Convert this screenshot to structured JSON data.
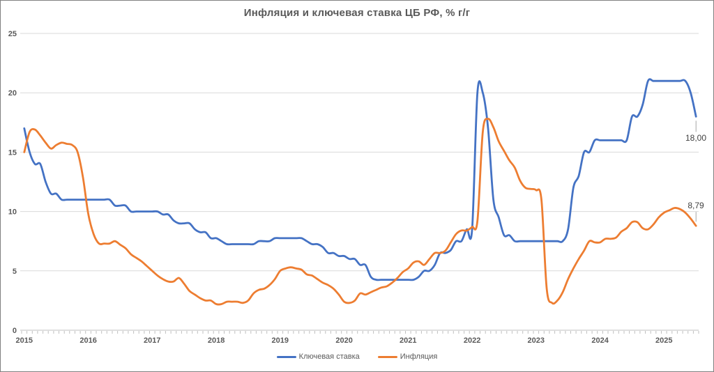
{
  "window": {
    "background": "#FFFFFF",
    "border_color": "#808080"
  },
  "chart_data": {
    "type": "line",
    "title": "Инфляция и ключевая ставка ЦБ РФ, % г/г",
    "x_start": "2015-01",
    "x_end": "2025-07",
    "frequency": "monthly",
    "x_tick_labels": [
      "2015",
      "2016",
      "2017",
      "2018",
      "2019",
      "2020",
      "2021",
      "2022",
      "2023",
      "2024",
      "2025"
    ],
    "ylim": [
      0,
      25
    ],
    "yticks": [
      0,
      5,
      10,
      15,
      20,
      25
    ],
    "grid": "horizontal-only",
    "legend_position": "bottom-center",
    "colors": {
      "grid": "#D9D9D9",
      "axis": "#BFBFBF",
      "text": "#595959",
      "end_label_text": "#404040",
      "leader_line": "#A6A6A6"
    },
    "series": [
      {
        "name": "Ключевая ставка",
        "color": "#4472C4",
        "end_label": "18,00",
        "end_label_position": "below",
        "values": [
          17,
          15,
          14,
          14,
          12.5,
          11.5,
          11.5,
          11,
          11,
          11,
          11,
          11,
          11,
          11,
          11,
          11,
          11,
          10.5,
          10.5,
          10.5,
          10,
          10,
          10,
          10,
          10,
          10,
          9.75,
          9.75,
          9.25,
          9,
          9,
          9,
          8.5,
          8.25,
          8.25,
          7.75,
          7.75,
          7.5,
          7.25,
          7.25,
          7.25,
          7.25,
          7.25,
          7.25,
          7.5,
          7.5,
          7.5,
          7.75,
          7.75,
          7.75,
          7.75,
          7.75,
          7.75,
          7.5,
          7.25,
          7.25,
          7,
          6.5,
          6.5,
          6.25,
          6.25,
          6,
          6,
          5.5,
          5.5,
          4.5,
          4.25,
          4.25,
          4.25,
          4.25,
          4.25,
          4.25,
          4.25,
          4.25,
          4.5,
          5,
          5,
          5.5,
          6.5,
          6.5,
          6.75,
          7.5,
          7.5,
          8.5,
          8.5,
          20,
          20,
          17,
          11,
          9.5,
          8,
          8,
          7.5,
          7.5,
          7.5,
          7.5,
          7.5,
          7.5,
          7.5,
          7.5,
          7.5,
          7.5,
          8.5,
          12,
          13,
          15,
          15,
          16,
          16,
          16,
          16,
          16,
          16,
          16,
          18,
          18,
          19,
          21,
          21,
          21,
          21,
          21,
          21,
          21,
          21,
          20,
          18
        ]
      },
      {
        "name": "Инфляция",
        "color": "#ED7D31",
        "end_label": "8,79",
        "end_label_position": "above",
        "values": [
          15.0,
          16.7,
          16.9,
          16.4,
          15.8,
          15.3,
          15.6,
          15.8,
          15.7,
          15.6,
          15.0,
          12.9,
          9.8,
          8.1,
          7.3,
          7.3,
          7.3,
          7.5,
          7.2,
          6.9,
          6.4,
          6.1,
          5.8,
          5.4,
          5.0,
          4.6,
          4.3,
          4.1,
          4.1,
          4.4,
          3.9,
          3.3,
          3.0,
          2.7,
          2.5,
          2.5,
          2.2,
          2.2,
          2.4,
          2.4,
          2.4,
          2.3,
          2.5,
          3.1,
          3.4,
          3.5,
          3.8,
          4.3,
          5.0,
          5.2,
          5.3,
          5.2,
          5.1,
          4.7,
          4.6,
          4.3,
          4.0,
          3.8,
          3.5,
          3.0,
          2.4,
          2.3,
          2.5,
          3.1,
          3.0,
          3.2,
          3.4,
          3.6,
          3.7,
          4.0,
          4.4,
          4.9,
          5.2,
          5.7,
          5.8,
          5.5,
          6.0,
          6.5,
          6.5,
          6.7,
          7.4,
          8.1,
          8.4,
          8.4,
          8.7,
          9.2,
          16.7,
          17.8,
          17.1,
          15.9,
          15.1,
          14.3,
          13.7,
          12.6,
          12.0,
          11.9,
          11.8,
          11.0,
          3.5,
          2.3,
          2.5,
          3.2,
          4.3,
          5.2,
          6.0,
          6.7,
          7.5,
          7.4,
          7.4,
          7.7,
          7.7,
          7.8,
          8.3,
          8.6,
          9.1,
          9.1,
          8.6,
          8.5,
          8.9,
          9.5,
          9.9,
          10.1,
          10.3,
          10.2,
          9.9,
          9.4,
          8.79
        ]
      }
    ]
  }
}
